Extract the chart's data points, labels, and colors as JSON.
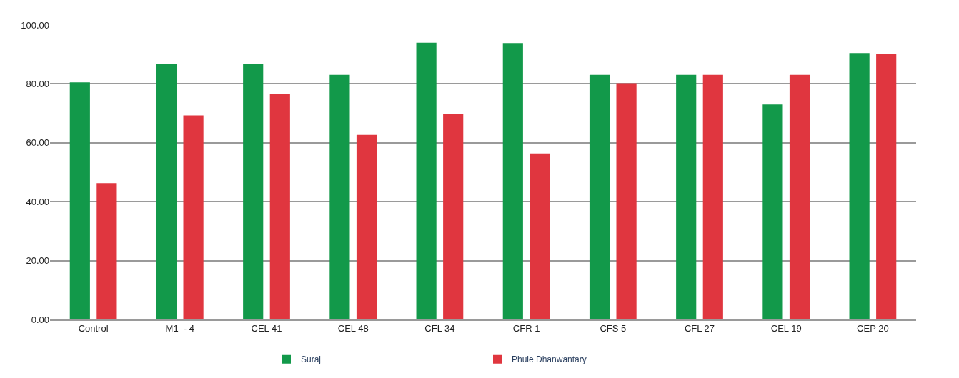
{
  "chart_data": {
    "type": "bar",
    "categories": [
      "Control",
      "M1  - 4",
      "CEL 41",
      "CEL 48",
      "CFL 34",
      "CFR 1",
      "CFS 5",
      "CFL 27",
      "CEL 19",
      "CEP 20"
    ],
    "series": [
      {
        "name": "Suraj",
        "color": "#12994a",
        "values": [
          80.5,
          86.8,
          86.8,
          83.1,
          94.0,
          93.9,
          83.1,
          83.1,
          73.0,
          90.5
        ]
      },
      {
        "name": "Phule Dhanwantary",
        "color": "#e0363f",
        "values": [
          46.3,
          69.3,
          76.6,
          62.7,
          69.8,
          56.4,
          80.2,
          83.1,
          83.1,
          90.2
        ]
      }
    ],
    "ylim": [
      0,
      100
    ],
    "yticks": [
      {
        "value": 0,
        "label": "0.00"
      },
      {
        "value": 20,
        "label": "20.00"
      },
      {
        "value": 40,
        "label": "40.00"
      },
      {
        "value": 60,
        "label": "60.00"
      },
      {
        "value": 80,
        "label": "80.00"
      },
      {
        "value": 100,
        "label": "100.00"
      }
    ],
    "grid": "y",
    "legend": "bottom"
  }
}
